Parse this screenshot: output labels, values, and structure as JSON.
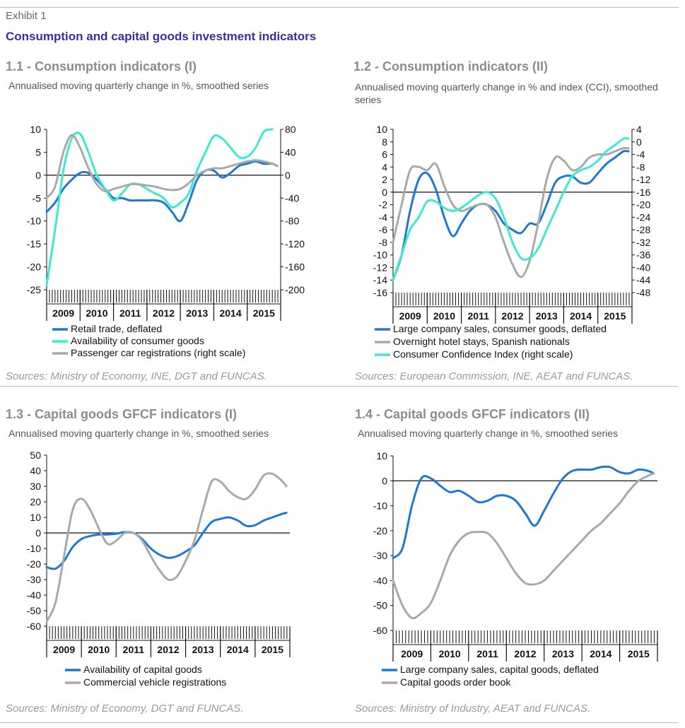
{
  "header": {
    "exhibit": "Exhibit 1",
    "title": "Consumption and capital goods investment indicators"
  },
  "colors": {
    "blue": "#1f78d1",
    "cyan": "#3fe8d2",
    "gray": "#a6aba8",
    "title_blue": "#3a2e9e"
  },
  "panels": [
    {
      "title": "1.1 - Consumption indicators (I)",
      "subtitle": "Annualised moving quarterly change in %, smoothed series",
      "source": "Sources:  Ministry of Economy, INE, DGT and FUNCAS."
    },
    {
      "title": "1.2 - Consumption indicators (II)",
      "subtitle": "Annualised moving quarterly change in % and index (CCI), smoothed series",
      "source": "Sources: European Commission, INE, AEAT and FUNCAS."
    },
    {
      "title": "1.3 -  Capital goods GFCF indicators (I)",
      "subtitle": "Annualised moving quarterly change in %, smoothed series",
      "source": "Sources: Ministry of Economy, DGT and FUNCAS."
    },
    {
      "title": "1.4 - Capital goods GFCF indicators (II)",
      "subtitle": "Annualised moving quarterly change in %, smoothed series",
      "source": "Sources: Ministry of Industry, AEAT and FUNCAS."
    }
  ],
  "chart_data": [
    {
      "type": "line",
      "title": "1.1 - Consumption indicators (I)",
      "x_range": [
        2008.5,
        2015.5
      ],
      "categories": [
        "2009",
        "2010",
        "2011",
        "2012",
        "2013",
        "2014",
        "2015"
      ],
      "ylim": [
        -25,
        10
      ],
      "yticks": [
        10,
        5,
        0,
        -5,
        -10,
        -15,
        -20,
        -25
      ],
      "ylim_right": [
        -200,
        80
      ],
      "yticks_right": [
        80,
        40,
        0,
        -40,
        -80,
        -120,
        -160,
        -200
      ],
      "legend_position": "bottom",
      "series": [
        {
          "name": "Retail trade, deflated",
          "color": "#1f78d1",
          "axis": "left",
          "x": [
            2008.5,
            2008.75,
            2009.0,
            2009.25,
            2009.5,
            2009.75,
            2010.0,
            2010.25,
            2010.5,
            2010.75,
            2011.0,
            2011.25,
            2011.5,
            2011.75,
            2012.0,
            2012.25,
            2012.5,
            2012.75,
            2013.0,
            2013.25,
            2013.5,
            2013.75,
            2014.0,
            2014.25,
            2014.5,
            2014.75,
            2015.0,
            2015.25,
            2015.4
          ],
          "y": [
            -8,
            -6,
            -3,
            -1,
            0.5,
            0.5,
            -1,
            -3,
            -5,
            -5,
            -5.5,
            -5.5,
            -5.5,
            -5.5,
            -6,
            -8,
            -10,
            -6,
            -1,
            1,
            1,
            -0.5,
            0.5,
            2,
            2.5,
            3,
            2.5,
            2.5,
            2
          ]
        },
        {
          "name": "Availability of consumer  goods",
          "color": "#3fe8d2",
          "axis": "left",
          "x": [
            2008.5,
            2008.75,
            2009.0,
            2009.25,
            2009.5,
            2009.75,
            2010.0,
            2010.25,
            2010.5,
            2010.75,
            2011.0,
            2011.25,
            2011.5,
            2011.75,
            2012.0,
            2012.25,
            2012.5,
            2012.75,
            2013.0,
            2013.25,
            2013.5,
            2013.75,
            2014.0,
            2014.25,
            2014.5,
            2014.75,
            2015.0,
            2015.25
          ],
          "y": [
            -24,
            -12,
            1,
            8,
            9,
            5,
            0,
            -3,
            -5.5,
            -4,
            -2,
            -2,
            -3,
            -4,
            -5,
            -7,
            -6,
            -4,
            1,
            5,
            8.5,
            8,
            6,
            4,
            4,
            6,
            9.5,
            10
          ]
        },
        {
          "name": "Passenger car registrations (right scale)",
          "color": "#a6aba8",
          "axis": "right",
          "x": [
            2008.5,
            2008.75,
            2009.0,
            2009.25,
            2009.5,
            2009.75,
            2010.0,
            2010.25,
            2010.5,
            2010.75,
            2011.0,
            2011.25,
            2011.5,
            2011.75,
            2012.0,
            2012.25,
            2012.5,
            2012.75,
            2013.0,
            2013.25,
            2013.5,
            2013.75,
            2014.0,
            2014.25,
            2014.5,
            2014.75,
            2015.0,
            2015.25,
            2015.4
          ],
          "y": [
            -40,
            -20,
            40,
            70,
            48,
            12,
            -16,
            -28,
            -24,
            -20,
            -16,
            -16,
            -18,
            -20,
            -24,
            -26,
            -24,
            -14,
            0,
            8,
            12,
            12,
            16,
            20,
            24,
            26,
            24,
            20,
            16
          ]
        }
      ]
    },
    {
      "type": "line",
      "title": "1.2 - Consumption indicators (II)",
      "x_range": [
        2008.5,
        2015.5
      ],
      "categories": [
        "2009",
        "2010",
        "2011",
        "2012",
        "2013",
        "2014",
        "2015"
      ],
      "ylim": [
        -16,
        10
      ],
      "yticks": [
        10,
        8,
        6,
        4,
        2,
        0,
        -2,
        -4,
        -6,
        -8,
        -10,
        -12,
        -14,
        -16
      ],
      "ylim_right": [
        -48,
        4
      ],
      "yticks_right": [
        4,
        0,
        -4,
        -8,
        -12,
        -16,
        -20,
        -24,
        -28,
        -32,
        -36,
        -40,
        -44,
        -48
      ],
      "legend_position": "bottom",
      "series": [
        {
          "name": "Large company sales, consumer goods, deflated",
          "color": "#1f78d1",
          "axis": "left",
          "x": [
            2008.5,
            2008.75,
            2009.0,
            2009.25,
            2009.5,
            2009.75,
            2010.0,
            2010.25,
            2010.5,
            2010.75,
            2011.0,
            2011.25,
            2011.5,
            2011.75,
            2012.0,
            2012.25,
            2012.5,
            2012.75,
            2013.0,
            2013.25,
            2013.5,
            2013.75,
            2014.0,
            2014.25,
            2014.5,
            2014.75,
            2015.0,
            2015.25,
            2015.4
          ],
          "y": [
            -14,
            -10,
            -3,
            2,
            3,
            0.5,
            -4,
            -7,
            -5,
            -3,
            -2,
            -2,
            -3,
            -5,
            -6,
            -6.5,
            -5,
            -5,
            -2,
            1.5,
            2.5,
            2.5,
            1.5,
            1.5,
            3,
            4.5,
            5.5,
            6.5,
            6.5
          ]
        },
        {
          "name": "Overnight hotel stays, Spanish nationals",
          "color": "#a6aba8",
          "axis": "left",
          "x": [
            2008.5,
            2008.75,
            2009.0,
            2009.25,
            2009.5,
            2009.75,
            2010.0,
            2010.25,
            2010.5,
            2010.75,
            2011.0,
            2011.25,
            2011.5,
            2011.75,
            2012.0,
            2012.25,
            2012.5,
            2012.75,
            2013.0,
            2013.25,
            2013.5,
            2013.75,
            2014.0,
            2014.25,
            2014.5,
            2014.75,
            2015.0,
            2015.25,
            2015.4
          ],
          "y": [
            -8,
            -2,
            3.5,
            4,
            3.5,
            4.5,
            1,
            -2,
            -3,
            -2.5,
            -2,
            -2,
            -4,
            -8,
            -11.5,
            -13.5,
            -11,
            -5,
            2,
            5.5,
            5,
            3.5,
            4,
            5.5,
            6,
            6,
            6.5,
            7,
            7
          ]
        },
        {
          "name": "Consumer Confidence Index (right scale)",
          "color": "#3fe8d2",
          "axis": "right",
          "x": [
            2008.5,
            2008.75,
            2009.0,
            2009.25,
            2009.5,
            2009.75,
            2010.0,
            2010.25,
            2010.5,
            2010.75,
            2011.0,
            2011.25,
            2011.5,
            2011.75,
            2012.0,
            2012.25,
            2012.5,
            2012.75,
            2013.0,
            2013.25,
            2013.5,
            2013.75,
            2014.0,
            2014.25,
            2014.5,
            2014.75,
            2015.0,
            2015.25,
            2015.4
          ],
          "y": [
            -44,
            -36,
            -28,
            -24,
            -19,
            -19,
            -21,
            -22,
            -21,
            -19,
            -17,
            -16,
            -18,
            -24,
            -32,
            -37,
            -37,
            -34,
            -28,
            -22,
            -16,
            -11,
            -9,
            -8,
            -6,
            -3,
            -1,
            1,
            1
          ]
        }
      ]
    },
    {
      "type": "line",
      "title": "1.3 -  Capital goods GFCF indicators (I)",
      "x_range": [
        2008.5,
        2015.5
      ],
      "categories": [
        "2009",
        "2010",
        "2011",
        "2012",
        "2013",
        "2014",
        "2015"
      ],
      "ylim": [
        -60,
        50
      ],
      "yticks": [
        50,
        40,
        30,
        20,
        10,
        0,
        -10,
        -20,
        -30,
        -40,
        -50,
        -60
      ],
      "legend_position": "bottom",
      "series": [
        {
          "name": "Availability of capital goods",
          "color": "#1f78d1",
          "axis": "left",
          "x": [
            2008.5,
            2008.75,
            2009.0,
            2009.25,
            2009.5,
            2009.75,
            2010.0,
            2010.25,
            2010.5,
            2010.75,
            2011.0,
            2011.25,
            2011.5,
            2011.75,
            2012.0,
            2012.25,
            2012.5,
            2012.75,
            2013.0,
            2013.25,
            2013.5,
            2013.75,
            2014.0,
            2014.25,
            2014.5,
            2014.75,
            2015.0,
            2015.25,
            2015.4
          ],
          "y": [
            -22,
            -23,
            -18,
            -9,
            -4,
            -2,
            -1,
            -1,
            -0.5,
            0.5,
            0,
            -4,
            -10,
            -14,
            -16,
            -15,
            -12,
            -8,
            0,
            7,
            9,
            10,
            8,
            4.5,
            5,
            8,
            10,
            12,
            13
          ]
        },
        {
          "name": "Commercial vehicle registrations",
          "color": "#a6aba8",
          "axis": "left",
          "x": [
            2008.5,
            2008.75,
            2009.0,
            2009.25,
            2009.5,
            2009.75,
            2010.0,
            2010.25,
            2010.5,
            2010.75,
            2011.0,
            2011.25,
            2011.5,
            2011.75,
            2012.0,
            2012.25,
            2012.5,
            2012.75,
            2013.0,
            2013.25,
            2013.5,
            2013.75,
            2014.0,
            2014.25,
            2014.5,
            2014.75,
            2015.0,
            2015.25,
            2015.4
          ],
          "y": [
            -57,
            -45,
            -15,
            15,
            22,
            15,
            3,
            -7,
            -5,
            0,
            0,
            -5,
            -15,
            -24,
            -30,
            -28,
            -18,
            -5,
            15,
            33,
            33,
            27,
            23,
            22,
            28,
            37,
            38,
            34,
            30
          ]
        }
      ]
    },
    {
      "type": "line",
      "title": "1.4 - Capital goods GFCF indicators (II)",
      "x_range": [
        2008.5,
        2015.5
      ],
      "categories": [
        "2009",
        "2010",
        "2011",
        "2012",
        "2013",
        "2014",
        "2015"
      ],
      "ylim": [
        -60,
        10
      ],
      "yticks": [
        10,
        0,
        -10,
        -20,
        -30,
        -40,
        -50,
        -60
      ],
      "legend_position": "bottom",
      "series": [
        {
          "name": "Large company sales, capital goods, deflated",
          "color": "#1f78d1",
          "axis": "left",
          "x": [
            2008.5,
            2008.75,
            2009.0,
            2009.25,
            2009.5,
            2009.75,
            2010.0,
            2010.25,
            2010.5,
            2010.75,
            2011.0,
            2011.25,
            2011.5,
            2011.75,
            2012.0,
            2012.25,
            2012.5,
            2012.75,
            2013.0,
            2013.25,
            2013.5,
            2013.75,
            2014.0,
            2014.25,
            2014.5,
            2014.75,
            2015.0,
            2015.25,
            2015.4
          ],
          "y": [
            -31,
            -27,
            -10,
            1,
            1,
            -2,
            -4.5,
            -4,
            -6,
            -8.5,
            -8,
            -6,
            -6,
            -8,
            -13,
            -18,
            -12,
            -5,
            1,
            4,
            4.5,
            4.5,
            5.5,
            5.5,
            3.5,
            3,
            4.5,
            4,
            3
          ]
        },
        {
          "name": "Capital goods order book",
          "color": "#a6aba8",
          "axis": "left",
          "x": [
            2008.5,
            2008.75,
            2009.0,
            2009.25,
            2009.5,
            2009.75,
            2010.0,
            2010.25,
            2010.5,
            2010.75,
            2011.0,
            2011.25,
            2011.5,
            2011.75,
            2012.0,
            2012.25,
            2012.5,
            2012.75,
            2013.0,
            2013.25,
            2013.5,
            2013.75,
            2014.0,
            2014.25,
            2014.5,
            2014.75,
            2015.0,
            2015.25,
            2015.4
          ],
          "y": [
            -40,
            -50,
            -55,
            -53,
            -49,
            -40,
            -30,
            -24,
            -21,
            -20.5,
            -21,
            -25,
            -31,
            -37,
            -41,
            -41.5,
            -40,
            -36,
            -32,
            -28,
            -24,
            -20,
            -17,
            -13,
            -9,
            -4,
            0,
            2,
            3
          ]
        }
      ]
    }
  ]
}
